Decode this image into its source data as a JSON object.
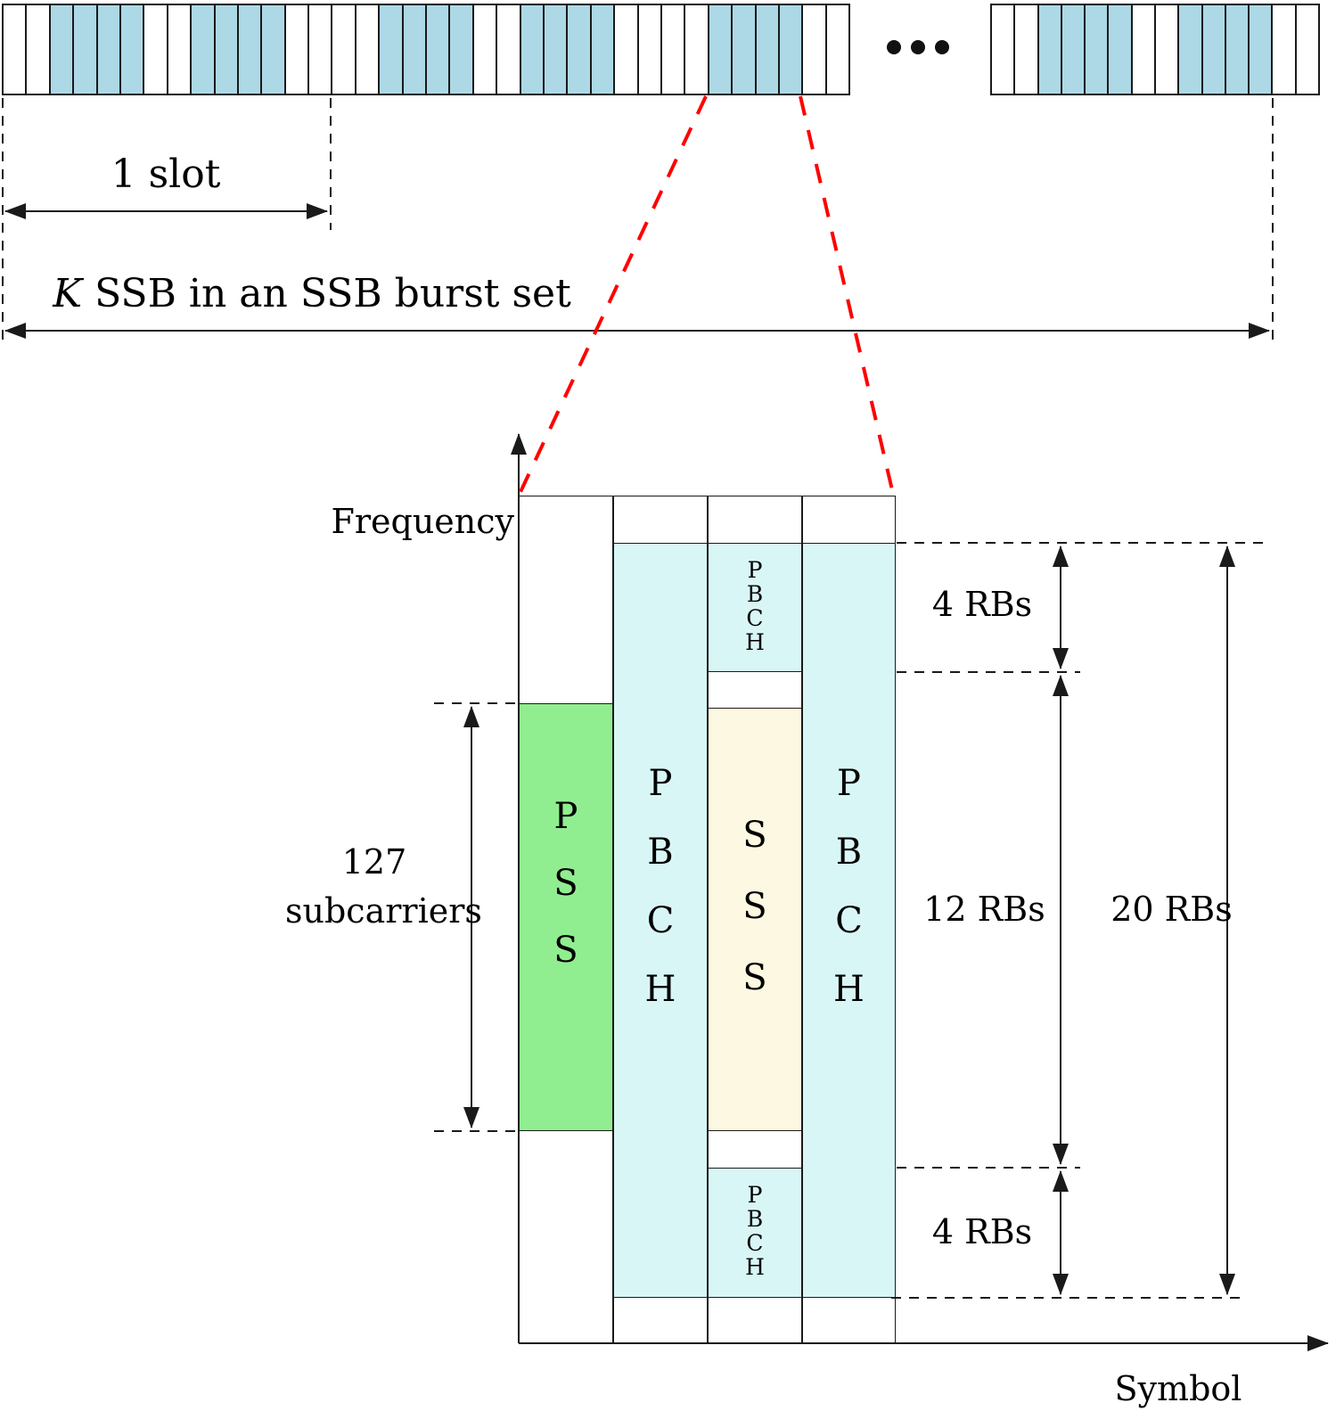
{
  "colors": {
    "line": "#1a1a1a",
    "cell_blue": "#add8e6",
    "pbch_cyan": "#d9f6f6",
    "pss_green": "#90ee90",
    "sss_yellow": "#fcf8e1",
    "guide_red": "#ff0000"
  },
  "top_timeline": {
    "bar1_pattern": "wwbbbbwwbbbbwwwwbbbbwwbbbbwwwwbbbbww",
    "bar2_pattern": "wwbbbbwwbbbbww",
    "ellipsis_dots": 3,
    "slot_label": "1 slot",
    "burst_label_k": "K",
    "burst_label_rest": " SSB in an SSB burst set"
  },
  "ssb_detail": {
    "freq_axis_label": "Frequency",
    "symbol_axis_label": "Symbol",
    "pss_label": "PSS",
    "pbch_left_label": "PBCH",
    "sss_label": "SSS",
    "pbch_right_label": "PBCH",
    "pbch_top_small_label": "PBCH",
    "pbch_bottom_small_label": "PBCH",
    "subcarriers_value": "127",
    "subcarriers_word": "subcarriers",
    "rb_top_label": "4 RBs",
    "rb_mid_label": "12 RBs",
    "rb_total_label": "20 RBs",
    "rb_bottom_label": "4 RBs"
  }
}
